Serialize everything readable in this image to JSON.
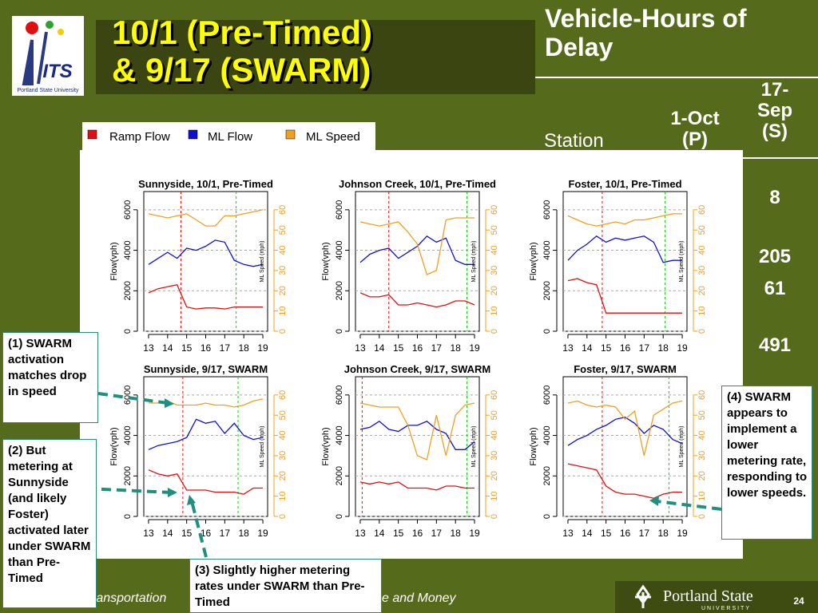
{
  "header": {
    "title_lines": [
      "10/1 (Pre-Timed)",
      "& 9/17 (SWARM)"
    ],
    "logo_text": "ITS",
    "logo_caption": "Portland State University"
  },
  "table": {
    "title": "Vehicle-Hours of Delay",
    "columns": [
      "Station",
      "1-Oct (P)",
      "17-Sep (S)"
    ],
    "visible_values": [
      8,
      205,
      61,
      491
    ]
  },
  "legend": {
    "items": [
      {
        "name": "Ramp Flow",
        "color": "#e01010"
      },
      {
        "name": "ML Flow",
        "color": "#1010d0"
      },
      {
        "name": "ML Speed",
        "color": "#f0a020"
      }
    ]
  },
  "chart_data": [
    {
      "type": "line",
      "title": "Sunnyside, 10/1, Pre-Timed",
      "ylabel": "Flow(vph)",
      "y2label": "ML Speed (mph)",
      "x": [
        13,
        13.5,
        14,
        14.5,
        15,
        15.5,
        16,
        16.5,
        17,
        17.5,
        18,
        18.5,
        19
      ],
      "xlim": [
        12.75,
        19.25
      ],
      "xticks": [
        13,
        14,
        15,
        16,
        17,
        18,
        19
      ],
      "ylim": [
        0,
        6900
      ],
      "yticks": [
        0,
        2000,
        4000,
        6000
      ],
      "y2lim": [
        0,
        69
      ],
      "y2ticks": [
        0,
        10,
        20,
        30,
        40,
        50,
        60
      ],
      "grid": true,
      "series": [
        {
          "values": [
            1900,
            2100,
            2200,
            2300,
            1200,
            1100,
            1150,
            1150,
            1100,
            1200,
            1200,
            1200,
            1200
          ]
        },
        {
          "values": [
            3300,
            3600,
            3900,
            3600,
            4100,
            4000,
            4200,
            4500,
            4400,
            3500,
            3300,
            3200,
            3300
          ]
        },
        {
          "values": [
            58,
            57,
            56,
            57,
            58,
            55,
            52,
            52,
            57,
            57,
            58,
            59,
            60
          ],
          "axis": "y2"
        }
      ],
      "vlines": [
        {
          "x": 14.7,
          "color": "#e01010"
        },
        {
          "x": 17.6,
          "color": "#20c020"
        }
      ]
    },
    {
      "type": "line",
      "title": "Johnson Creek, 10/1, Pre-Timed",
      "ylabel": "Flow(vph)",
      "y2label": "ML Speed (mph)",
      "x": [
        13,
        13.5,
        14,
        14.5,
        15,
        15.5,
        16,
        16.5,
        17,
        17.5,
        18,
        18.5,
        19
      ],
      "xlim": [
        12.75,
        19.25
      ],
      "xticks": [
        13,
        14,
        15,
        16,
        17,
        18,
        19
      ],
      "ylim": [
        0,
        6900
      ],
      "yticks": [
        0,
        2000,
        4000,
        6000
      ],
      "y2lim": [
        0,
        69
      ],
      "y2ticks": [
        0,
        10,
        20,
        30,
        40,
        50,
        60
      ],
      "grid": true,
      "series": [
        {
          "values": [
            1900,
            1700,
            1700,
            1800,
            1300,
            1300,
            1400,
            1300,
            1200,
            1300,
            1500,
            1500,
            1300
          ]
        },
        {
          "values": [
            3400,
            3800,
            4000,
            4100,
            3600,
            3900,
            4200,
            4700,
            4400,
            4600,
            3500,
            3300,
            3300
          ]
        },
        {
          "values": [
            54,
            53,
            52,
            53,
            54,
            49,
            43,
            28,
            30,
            55,
            56,
            56,
            56
          ],
          "axis": "y2"
        }
      ],
      "vlines": [
        {
          "x": 14.5,
          "color": "#e01010"
        },
        {
          "x": 18.6,
          "color": "#20c020"
        }
      ]
    },
    {
      "type": "line",
      "title": "Foster, 10/1, Pre-Timed",
      "ylabel": "Flow(vph)",
      "y2label": "ML Speed (mph)",
      "x": [
        13,
        13.5,
        14,
        14.5,
        15,
        15.5,
        16,
        16.5,
        17,
        17.5,
        18,
        18.5,
        19
      ],
      "xlim": [
        12.75,
        19.25
      ],
      "xticks": [
        13,
        14,
        15,
        16,
        17,
        18,
        19
      ],
      "ylim": [
        0,
        6900
      ],
      "yticks": [
        0,
        2000,
        4000,
        6000
      ],
      "y2lim": [
        0,
        69
      ],
      "y2ticks": [
        0,
        10,
        20,
        30,
        40,
        50,
        60
      ],
      "grid": true,
      "series": [
        {
          "values": [
            2500,
            2600,
            2400,
            2300,
            900,
            900,
            900,
            900,
            900,
            900,
            900,
            900,
            900
          ]
        },
        {
          "values": [
            3500,
            4000,
            4300,
            4700,
            4400,
            4600,
            4500,
            4600,
            4700,
            4400,
            3400,
            3500,
            3500
          ]
        },
        {
          "values": [
            57,
            55,
            53,
            52,
            53,
            54,
            53,
            55,
            55,
            56,
            57,
            58,
            58
          ],
          "axis": "y2"
        }
      ],
      "vlines": [
        {
          "x": 14.8,
          "color": "#e01010"
        },
        {
          "x": 18.1,
          "color": "#20c020"
        }
      ]
    },
    {
      "type": "line",
      "title": "Sunnyside, 9/17, SWARM",
      "ylabel": "Flow(vph)",
      "y2label": "ML Speed (mph)",
      "x": [
        13,
        13.5,
        14,
        14.5,
        15,
        15.5,
        16,
        16.5,
        17,
        17.5,
        18,
        18.5,
        19
      ],
      "xlim": [
        12.75,
        19.25
      ],
      "xticks": [
        13,
        14,
        15,
        16,
        17,
        18,
        19
      ],
      "ylim": [
        0,
        6900
      ],
      "yticks": [
        0,
        2000,
        4000,
        6000
      ],
      "y2lim": [
        0,
        69
      ],
      "y2ticks": [
        0,
        10,
        20,
        30,
        40,
        50,
        60
      ],
      "grid": true,
      "series": [
        {
          "values": [
            2300,
            2100,
            2000,
            2100,
            1300,
            1300,
            1300,
            1200,
            1200,
            1200,
            1100,
            1400,
            1400
          ]
        },
        {
          "values": [
            3300,
            3500,
            3600,
            3700,
            3900,
            4800,
            4600,
            4700,
            4100,
            4600,
            4000,
            3800,
            3900
          ]
        },
        {
          "values": [
            56,
            56,
            57,
            55,
            55,
            55,
            56,
            55,
            55,
            54,
            55,
            57,
            58
          ],
          "axis": "y2"
        }
      ],
      "vlines": [
        {
          "x": 14.8,
          "color": "#e01010"
        },
        {
          "x": 17.7,
          "color": "#20c020"
        }
      ]
    },
    {
      "type": "line",
      "title": "Johnson Creek, 9/17, SWARM",
      "ylabel": "Flow(vph)",
      "y2label": "ML Speed (mph)",
      "x": [
        13,
        13.5,
        14,
        14.5,
        15,
        15.5,
        16,
        16.5,
        17,
        17.5,
        18,
        18.5,
        19
      ],
      "xlim": [
        12.75,
        19.25
      ],
      "xticks": [
        13,
        14,
        15,
        16,
        17,
        18,
        19
      ],
      "ylim": [
        0,
        6900
      ],
      "yticks": [
        0,
        2000,
        4000,
        6000
      ],
      "y2lim": [
        0,
        69
      ],
      "y2ticks": [
        0,
        10,
        20,
        30,
        40,
        50,
        60
      ],
      "grid": true,
      "series": [
        {
          "values": [
            1700,
            1600,
            1700,
            1600,
            1700,
            1400,
            1400,
            1400,
            1300,
            1500,
            1500,
            1400,
            1400
          ]
        },
        {
          "values": [
            4300,
            4400,
            4700,
            4300,
            4200,
            4500,
            4500,
            4700,
            4300,
            4100,
            3300,
            3300,
            3700
          ]
        },
        {
          "values": [
            56,
            55,
            54,
            54,
            54,
            45,
            30,
            28,
            50,
            30,
            50,
            55,
            56
          ],
          "axis": "y2"
        }
      ],
      "vlines": [
        {
          "x": 13.1,
          "color": "#e01010"
        },
        {
          "x": 18.6,
          "color": "#20c020"
        }
      ]
    },
    {
      "type": "line",
      "title": "Foster, 9/17, SWARM",
      "ylabel": "Flow(vph)",
      "y2label": "ML Speed (mph)",
      "x": [
        13,
        13.5,
        14,
        14.5,
        15,
        15.5,
        16,
        16.5,
        17,
        17.5,
        18,
        18.5,
        19
      ],
      "xlim": [
        12.75,
        19.25
      ],
      "xticks": [
        13,
        14,
        15,
        16,
        17,
        18,
        19
      ],
      "ylim": [
        0,
        6900
      ],
      "yticks": [
        0,
        2000,
        4000,
        6000
      ],
      "y2lim": [
        0,
        69
      ],
      "y2ticks": [
        0,
        10,
        20,
        30,
        40,
        50,
        60
      ],
      "grid": true,
      "series": [
        {
          "values": [
            2600,
            2500,
            2400,
            2300,
            1500,
            1200,
            1100,
            1100,
            1000,
            900,
            1100,
            1200,
            1200
          ]
        },
        {
          "values": [
            3500,
            3800,
            4000,
            4300,
            4500,
            4800,
            4900,
            4600,
            4100,
            4500,
            4300,
            3800,
            3600
          ]
        },
        {
          "values": [
            56,
            57,
            55,
            54,
            55,
            54,
            48,
            52,
            30,
            50,
            53,
            56,
            57
          ],
          "axis": "y2"
        }
      ],
      "vlines": [
        {
          "x": 14.8,
          "color": "#e01010"
        },
        {
          "x": 18.3,
          "color": "#20c020"
        }
      ]
    }
  ],
  "callouts": [
    "(1) SWARM activation matches drop in speed",
    "(2) But metering at Sunnyside (and likely Foster) activated later under SWARM than Pre-Timed",
    "(3) Slightly higher metering rates under SWARM than Pre-Timed",
    "(4) SWARM appears to implement a lower metering rate, responding to lower speeds."
  ],
  "footer": {
    "left": "ransportation",
    "middle": "e and Money",
    "logo": "Portland State",
    "logo_sub": "UNIVERSITY",
    "page": 24
  }
}
